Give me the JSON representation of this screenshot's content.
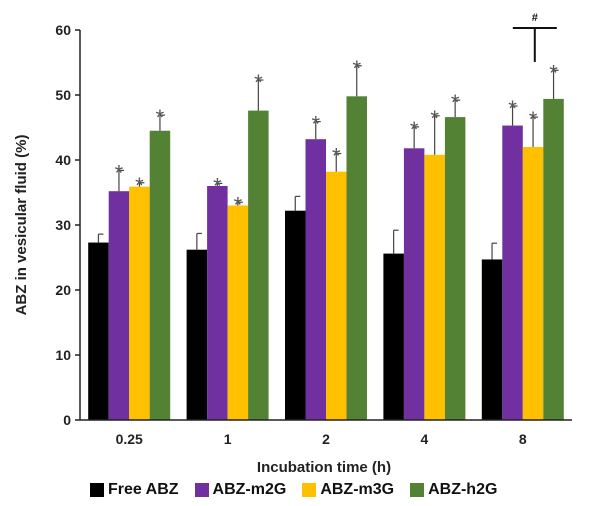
{
  "chart_data": {
    "type": "bar",
    "title": "",
    "xlabel": "Incubation time (h)",
    "ylabel": "ABZ  in vesicular fluid (%)",
    "ylim": [
      0,
      60
    ],
    "yticks": [
      0,
      10,
      20,
      30,
      40,
      50,
      60
    ],
    "categories": [
      "0.25",
      "1",
      "2",
      "4",
      "8"
    ],
    "series": [
      {
        "name": "Free ABZ",
        "color": "#000000",
        "values": [
          27.3,
          26.2,
          32.2,
          25.6,
          24.7
        ],
        "errors": [
          1.3,
          2.5,
          2.2,
          3.6,
          2.5
        ],
        "significance": [
          "",
          "",
          "",
          "",
          ""
        ]
      },
      {
        "name": "ABZ-m2G",
        "color": "#7030a0",
        "values": [
          35.2,
          36.0,
          43.2,
          41.8,
          45.3
        ],
        "errors": [
          3.2,
          0.4,
          2.7,
          3.3,
          3.0
        ],
        "significance": [
          "*",
          "*",
          "*",
          "*",
          "*"
        ]
      },
      {
        "name": "ABZ-m3G",
        "color": "#ffc000",
        "values": [
          35.9,
          33.0,
          38.2,
          40.8,
          42.0
        ],
        "errors": [
          0.6,
          0.5,
          2.8,
          6.0,
          4.6
        ],
        "significance": [
          "*",
          "*",
          "*",
          "*",
          "*"
        ]
      },
      {
        "name": "ABZ-h2G",
        "color": "#548235",
        "values": [
          44.5,
          47.6,
          49.8,
          46.6,
          49.4
        ],
        "errors": [
          2.4,
          4.7,
          4.7,
          2.6,
          4.4
        ],
        "significance": [
          "*",
          "*",
          "*",
          "*",
          "*"
        ]
      }
    ],
    "annotations": [
      {
        "text": "#",
        "category": "8"
      }
    ],
    "legend": {
      "position": "bottom"
    },
    "grid": false
  }
}
